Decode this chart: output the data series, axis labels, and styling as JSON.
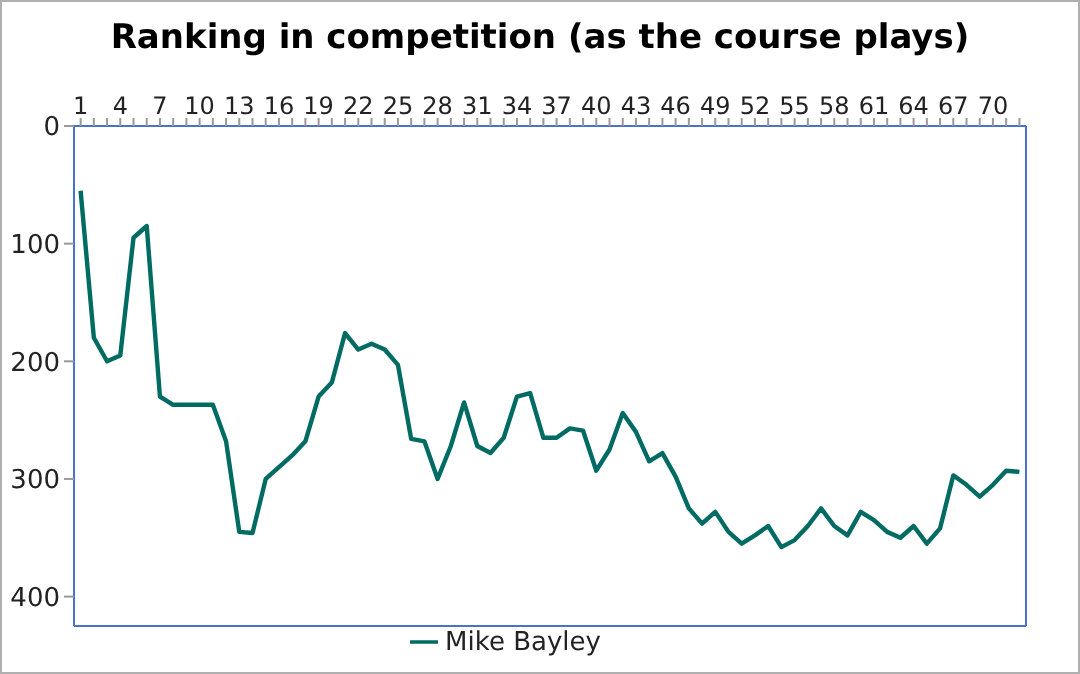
{
  "chart_data": {
    "type": "line",
    "title": "Ranking in competition (as the course plays)",
    "x": [
      1,
      2,
      3,
      4,
      5,
      6,
      7,
      8,
      9,
      10,
      11,
      12,
      13,
      14,
      15,
      16,
      17,
      18,
      19,
      20,
      21,
      22,
      23,
      24,
      25,
      26,
      27,
      28,
      29,
      30,
      31,
      32,
      33,
      34,
      35,
      36,
      37,
      38,
      39,
      40,
      41,
      42,
      43,
      44,
      45,
      46,
      47,
      48,
      49,
      50,
      51,
      52,
      53,
      54,
      55,
      56,
      57,
      58,
      59,
      60,
      61,
      62,
      63,
      64,
      65,
      66,
      67,
      68,
      69,
      70,
      71,
      72
    ],
    "series": [
      {
        "name": "Mike Bayley",
        "color": "#006b63",
        "values": [
          55,
          180,
          200,
          195,
          95,
          85,
          230,
          237,
          237,
          237,
          237,
          268,
          345,
          346,
          300,
          290,
          280,
          268,
          230,
          218,
          176,
          190,
          185,
          190,
          203,
          266,
          268,
          300,
          272,
          235,
          272,
          278,
          265,
          230,
          227,
          265,
          265,
          257,
          259,
          293,
          275,
          244,
          260,
          285,
          278,
          298,
          325,
          338,
          328,
          345,
          355,
          348,
          340,
          358,
          352,
          340,
          325,
          340,
          348,
          328,
          335,
          345,
          350,
          340,
          355,
          342,
          297,
          305,
          315,
          305,
          293,
          294
        ]
      }
    ],
    "xlim": [
      0.5,
      72.5
    ],
    "xticks": [
      1,
      {
        "value": 2,
        "label": null
      },
      {
        "value": 3,
        "label": null
      },
      4,
      {
        "value": 5,
        "label": null
      },
      {
        "value": 6,
        "label": null
      },
      7,
      {
        "value": 8,
        "label": null
      },
      {
        "value": 9,
        "label": null
      },
      10,
      {
        "value": 11,
        "label": null
      },
      {
        "value": 12,
        "label": null
      },
      13,
      {
        "value": 14,
        "label": null
      },
      {
        "value": 15,
        "label": null
      },
      16,
      {
        "value": 17,
        "label": null
      },
      {
        "value": 18,
        "label": null
      },
      19,
      {
        "value": 20,
        "label": null
      },
      {
        "value": 21,
        "label": null
      },
      22,
      {
        "value": 23,
        "label": null
      },
      {
        "value": 24,
        "label": null
      },
      25,
      {
        "value": 26,
        "label": null
      },
      {
        "value": 27,
        "label": null
      },
      28,
      {
        "value": 29,
        "label": null
      },
      {
        "value": 30,
        "label": null
      },
      31,
      {
        "value": 32,
        "label": null
      },
      {
        "value": 33,
        "label": null
      },
      34,
      {
        "value": 35,
        "label": null
      },
      {
        "value": 36,
        "label": null
      },
      37,
      {
        "value": 38,
        "label": null
      },
      {
        "value": 39,
        "label": null
      },
      40,
      {
        "value": 41,
        "label": null
      },
      {
        "value": 42,
        "label": null
      },
      43,
      {
        "value": 44,
        "label": null
      },
      {
        "value": 45,
        "label": null
      },
      46,
      {
        "value": 47,
        "label": null
      },
      {
        "value": 48,
        "label": null
      },
      49,
      {
        "value": 50,
        "label": null
      },
      {
        "value": 51,
        "label": null
      },
      52,
      {
        "value": 53,
        "label": null
      },
      {
        "value": 54,
        "label": null
      },
      55,
      {
        "value": 56,
        "label": null
      },
      {
        "value": 57,
        "label": null
      },
      58,
      {
        "value": 59,
        "label": null
      },
      {
        "value": 60,
        "label": null
      },
      61,
      {
        "value": 62,
        "label": null
      },
      {
        "value": 63,
        "label": null
      },
      64,
      {
        "value": 65,
        "label": null
      },
      {
        "value": 66,
        "label": null
      },
      67,
      {
        "value": 68,
        "label": null
      },
      {
        "value": 69,
        "label": null
      },
      70,
      {
        "value": 71,
        "label": null
      },
      {
        "value": 72,
        "label": null
      }
    ],
    "ylim": [
      425,
      0
    ],
    "yticks": [
      0,
      100,
      200,
      300,
      400
    ],
    "legend": "bottom",
    "marker": "none",
    "line_style": "solid"
  }
}
